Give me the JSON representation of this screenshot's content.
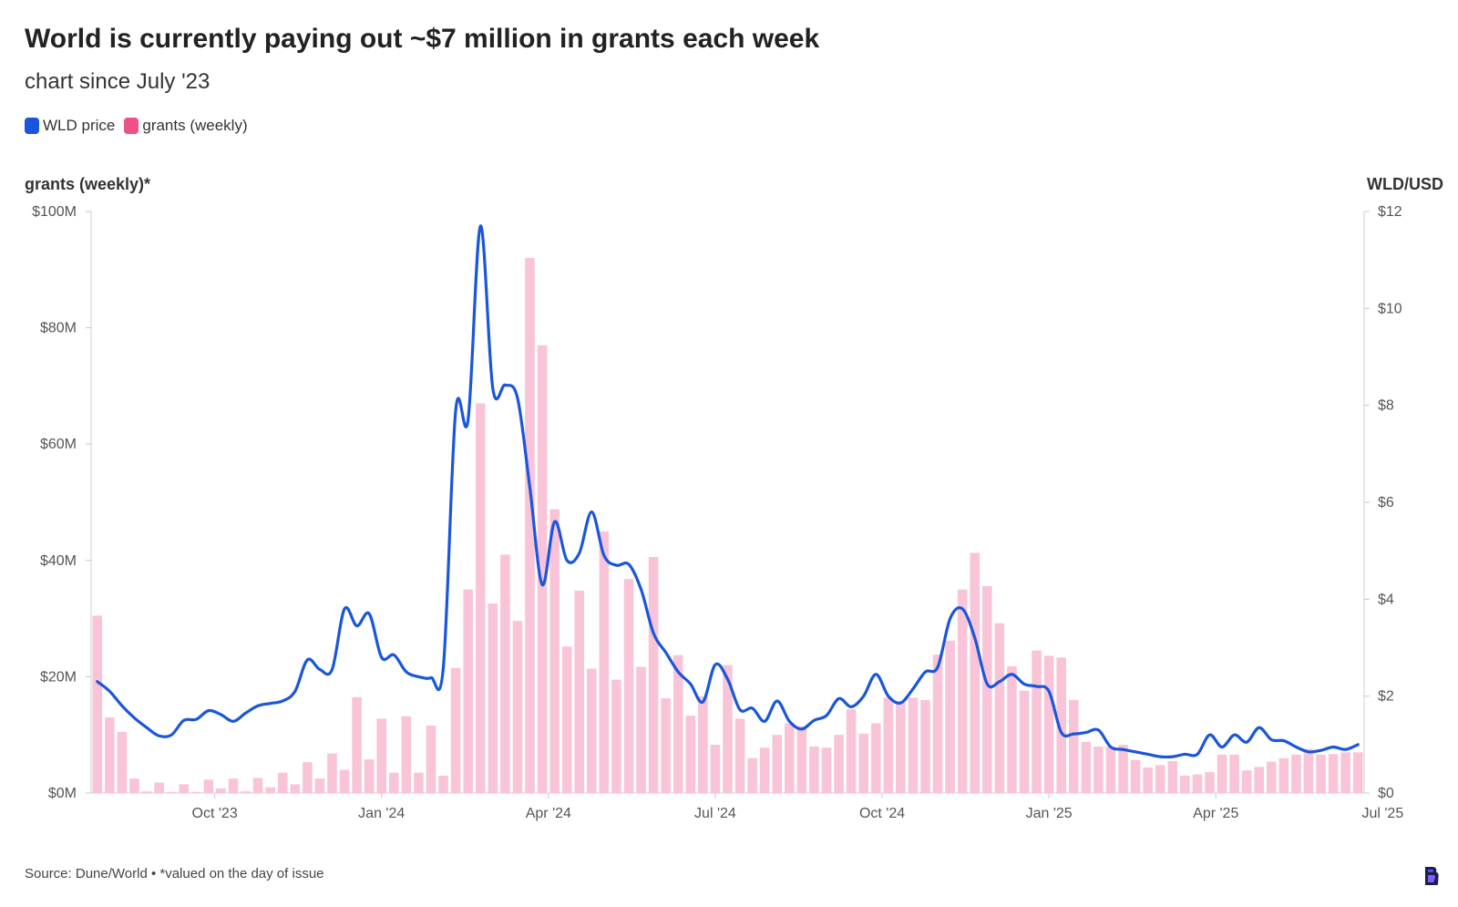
{
  "chart_data": {
    "type": "bar+line",
    "title": "World is currently paying out ~$7 million in grants each week",
    "subtitle": "chart since July '23",
    "legend": [
      {
        "name": "WLD price",
        "color": "#1a56db"
      },
      {
        "name": "grants (weekly)",
        "color": "#f0508a"
      }
    ],
    "left_axis_title": "grants (weekly)*",
    "right_axis_title": "WLD/USD",
    "left_ticks": [
      "$0M",
      "$20M",
      "$40M",
      "$60M",
      "$80M",
      "$100M"
    ],
    "right_ticks": [
      "$0",
      "$2",
      "$4",
      "$6",
      "$8",
      "$10",
      "$12"
    ],
    "left_range": [
      0,
      100
    ],
    "right_range": [
      0,
      12
    ],
    "x_ticks": [
      "Oct '23",
      "Jan '24",
      "Apr '24",
      "Jul '24",
      "Oct '24",
      "Jan '25",
      "Apr '25",
      "Jul '25"
    ],
    "x_tick_week_index": [
      10,
      23.5,
      37,
      50.5,
      64,
      77.5,
      91,
      104.5
    ],
    "bar_color": "#f9c4d7",
    "line_color": "#1a56db",
    "grants_weekly_musd": [
      30.5,
      13,
      10.5,
      2.5,
      0.3,
      1.8,
      0.2,
      1.5,
      0.2,
      2.3,
      0.8,
      2.5,
      0.3,
      2.6,
      1,
      3.5,
      1.5,
      5.3,
      2.5,
      6.8,
      4,
      16.5,
      5.8,
      12.8,
      3.5,
      13.2,
      3.5,
      11.6,
      3,
      21.5,
      35,
      67,
      32.6,
      41,
      29.6,
      92,
      77,
      48.8,
      25.2,
      34.8,
      21.4,
      45,
      19.5,
      36.8,
      21.7,
      40.6,
      16.3,
      23.7,
      13.3,
      16.6,
      8.3,
      22,
      12.8,
      6,
      7.8,
      10,
      12,
      11.5,
      8,
      7.8,
      10,
      14.4,
      10.2,
      12,
      16.4,
      15.8,
      16.4,
      16,
      23.8,
      26.2,
      35,
      41.3,
      35.6,
      29.2,
      21.8,
      17.6,
      24.5,
      23.6,
      23.3,
      16,
      8.8,
      8,
      8,
      8.3,
      5.7,
      4.4,
      4.8,
      5.5,
      3,
      3.2,
      3.6,
      6.6,
      6.6,
      3.9,
      4.5,
      5.4,
      6,
      6.6,
      7.6,
      6.6,
      6.7,
      7,
      7
    ],
    "wld_price_weekly": [
      2.3,
      2.1,
      1.8,
      1.55,
      1.35,
      1.18,
      1.2,
      1.5,
      1.52,
      1.7,
      1.62,
      1.48,
      1.65,
      1.8,
      1.85,
      1.9,
      2.1,
      2.75,
      2.55,
      2.55,
      3.8,
      3.45,
      3.7,
      2.8,
      2.85,
      2.5,
      2.4,
      2.38,
      2.6,
      7.9,
      7.7,
      11.7,
      8.35,
      8.42,
      8.15,
      6.3,
      4.3,
      5.6,
      4.8,
      4.95,
      5.8,
      4.9,
      4.7,
      4.72,
      4.2,
      3.3,
      2.9,
      2.5,
      2.25,
      1.88,
      2.65,
      2.35,
      1.72,
      1.75,
      1.48,
      1.9,
      1.48,
      1.32,
      1.5,
      1.6,
      1.95,
      1.78,
      2,
      2.45,
      2.0,
      1.86,
      2.15,
      2.5,
      2.6,
      3.6,
      3.8,
      3.2,
      2.25,
      2.3,
      2.45,
      2.25,
      2.2,
      2.1,
      1.25,
      1.22,
      1.25,
      1.3,
      0.95,
      0.9,
      0.85,
      0.8,
      0.75,
      0.75,
      0.8,
      0.8,
      1.2,
      0.95,
      1.2,
      1.05,
      1.35,
      1.1,
      1.08,
      0.95,
      0.85,
      0.88,
      0.95,
      0.9,
      1.0
    ]
  },
  "footer": {
    "source": "Source: Dune/World • *valued on the day of issue"
  }
}
